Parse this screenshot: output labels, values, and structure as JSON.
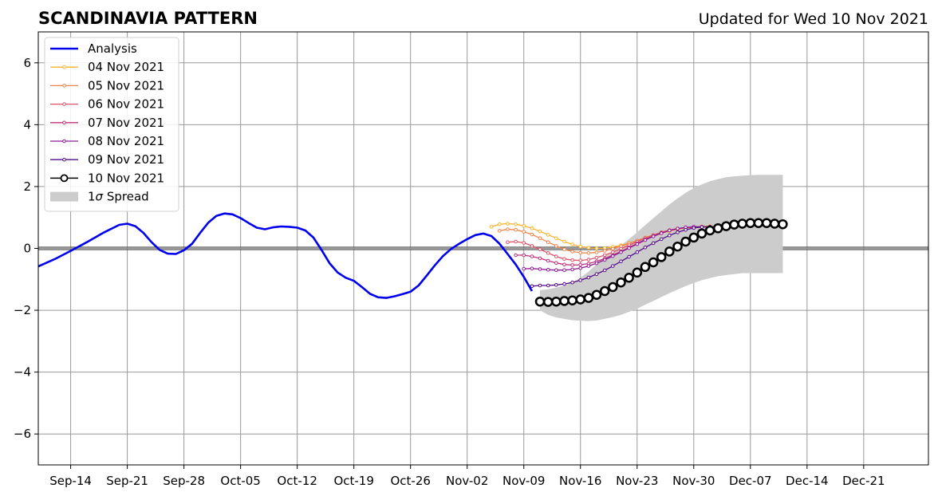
{
  "chart_data": {
    "type": "line",
    "title": "SCANDINAVIA PATTERN",
    "subtitle": "Updated for Wed 10 Nov 2021",
    "xlim": [
      "2021-09-10",
      "2021-12-29"
    ],
    "ylim": [
      -7,
      7
    ],
    "grid": true,
    "legend_position": "top-left",
    "x_ticks": [
      {
        "date": "2021-09-14",
        "label": "Sep-14"
      },
      {
        "date": "2021-09-21",
        "label": "Sep-21"
      },
      {
        "date": "2021-09-28",
        "label": "Sep-28"
      },
      {
        "date": "2021-10-05",
        "label": "Oct-05"
      },
      {
        "date": "2021-10-12",
        "label": "Oct-12"
      },
      {
        "date": "2021-10-19",
        "label": "Oct-19"
      },
      {
        "date": "2021-10-26",
        "label": "Oct-26"
      },
      {
        "date": "2021-11-02",
        "label": "Nov-02"
      },
      {
        "date": "2021-11-09",
        "label": "Nov-09"
      },
      {
        "date": "2021-11-16",
        "label": "Nov-16"
      },
      {
        "date": "2021-11-23",
        "label": "Nov-23"
      },
      {
        "date": "2021-11-30",
        "label": "Nov-30"
      },
      {
        "date": "2021-12-07",
        "label": "Dec-07"
      },
      {
        "date": "2021-12-14",
        "label": "Dec-14"
      },
      {
        "date": "2021-12-21",
        "label": "Dec-21"
      }
    ],
    "y_ticks": [
      {
        "value": -6,
        "label": "−6"
      },
      {
        "value": -4,
        "label": "−4"
      },
      {
        "value": -2,
        "label": "−2"
      },
      {
        "value": 0,
        "label": "0"
      },
      {
        "value": 2,
        "label": "2"
      },
      {
        "value": 4,
        "label": "4"
      },
      {
        "value": 6,
        "label": "6"
      }
    ],
    "analysis": {
      "name": "Analysis",
      "color": "#0000ee",
      "points": [
        [
          "2021-09-10",
          -0.58
        ],
        [
          "2021-09-12",
          -0.35
        ],
        [
          "2021-09-14",
          -0.08
        ],
        [
          "2021-09-16",
          0.2
        ],
        [
          "2021-09-18",
          0.5
        ],
        [
          "2021-09-20",
          0.76
        ],
        [
          "2021-09-21",
          0.8
        ],
        [
          "2021-09-22",
          0.72
        ],
        [
          "2021-09-23",
          0.5
        ],
        [
          "2021-09-24",
          0.2
        ],
        [
          "2021-09-25",
          -0.05
        ],
        [
          "2021-09-26",
          -0.17
        ],
        [
          "2021-09-27",
          -0.18
        ],
        [
          "2021-09-28",
          -0.06
        ],
        [
          "2021-09-29",
          0.15
        ],
        [
          "2021-09-30",
          0.5
        ],
        [
          "2021-10-01",
          0.83
        ],
        [
          "2021-10-02",
          1.05
        ],
        [
          "2021-10-03",
          1.13
        ],
        [
          "2021-10-04",
          1.1
        ],
        [
          "2021-10-05",
          0.98
        ],
        [
          "2021-10-06",
          0.82
        ],
        [
          "2021-10-07",
          0.67
        ],
        [
          "2021-10-08",
          0.62
        ],
        [
          "2021-10-09",
          0.68
        ],
        [
          "2021-10-10",
          0.71
        ],
        [
          "2021-10-11",
          0.7
        ],
        [
          "2021-10-12",
          0.67
        ],
        [
          "2021-10-13",
          0.58
        ],
        [
          "2021-10-14",
          0.35
        ],
        [
          "2021-10-15",
          -0.05
        ],
        [
          "2021-10-16",
          -0.48
        ],
        [
          "2021-10-17",
          -0.78
        ],
        [
          "2021-10-18",
          -0.95
        ],
        [
          "2021-10-19",
          -1.05
        ],
        [
          "2021-10-20",
          -1.25
        ],
        [
          "2021-10-21",
          -1.47
        ],
        [
          "2021-10-22",
          -1.58
        ],
        [
          "2021-10-23",
          -1.6
        ],
        [
          "2021-10-24",
          -1.55
        ],
        [
          "2021-10-25",
          -1.48
        ],
        [
          "2021-10-26",
          -1.4
        ],
        [
          "2021-10-27",
          -1.2
        ],
        [
          "2021-10-28",
          -0.88
        ],
        [
          "2021-10-29",
          -0.55
        ],
        [
          "2021-10-30",
          -0.25
        ],
        [
          "2021-10-31",
          -0.02
        ],
        [
          "2021-11-01",
          0.15
        ],
        [
          "2021-11-02",
          0.3
        ],
        [
          "2021-11-03",
          0.43
        ],
        [
          "2021-11-04",
          0.48
        ],
        [
          "2021-11-05",
          0.4
        ],
        [
          "2021-11-06",
          0.15
        ],
        [
          "2021-11-07",
          -0.18
        ],
        [
          "2021-11-08",
          -0.52
        ],
        [
          "2021-11-09",
          -0.92
        ],
        [
          "2021-11-10",
          -1.38
        ]
      ]
    },
    "spread": {
      "name": "1σ Spread",
      "legend_label_prefix": "1",
      "legend_label_symbol": "σ",
      "legend_label_suffix": " Spread",
      "color": "#cccccc",
      "x_start": "2021-11-11",
      "upper": [
        -1.35,
        -1.32,
        -1.27,
        -1.2,
        -1.1,
        -0.95,
        -0.75,
        -0.5,
        -0.28,
        -0.08,
        0.1,
        0.3,
        0.52,
        0.75,
        0.98,
        1.2,
        1.42,
        1.62,
        1.8,
        1.95,
        2.07,
        2.17,
        2.24,
        2.3,
        2.33,
        2.35,
        2.37,
        2.38,
        2.38,
        2.38,
        2.38
      ],
      "lower": [
        -2.0,
        -2.15,
        -2.23,
        -2.28,
        -2.32,
        -2.34,
        -2.35,
        -2.33,
        -2.28,
        -2.22,
        -2.15,
        -2.05,
        -1.95,
        -1.82,
        -1.7,
        -1.57,
        -1.45,
        -1.33,
        -1.22,
        -1.12,
        -1.03,
        -0.96,
        -0.9,
        -0.86,
        -0.83,
        -0.8,
        -0.8,
        -0.8,
        -0.8,
        -0.8,
        -0.8
      ]
    },
    "series": [
      {
        "name": "04 Nov 2021",
        "color": "#fcb32d",
        "style": "small-dots",
        "x_start": "2021-11-05",
        "values": [
          0.7,
          0.78,
          0.8,
          0.78,
          0.73,
          0.65,
          0.55,
          0.44,
          0.33,
          0.22,
          0.13,
          0.06,
          0.02,
          0.0,
          0.01,
          0.05,
          0.1,
          0.17,
          0.25,
          0.33,
          0.41,
          0.49,
          0.56,
          0.62,
          0.66,
          0.69,
          0.71,
          0.72
        ]
      },
      {
        "name": "05 Nov 2021",
        "color": "#f0844b",
        "style": "small-dots",
        "x_start": "2021-11-06",
        "values": [
          0.57,
          0.62,
          0.6,
          0.54,
          0.45,
          0.33,
          0.2,
          0.08,
          -0.03,
          -0.1,
          -0.14,
          -0.15,
          -0.13,
          -0.08,
          -0.01,
          0.07,
          0.16,
          0.25,
          0.35,
          0.43,
          0.51,
          0.58,
          0.63,
          0.67,
          0.69,
          0.7,
          0.7
        ]
      },
      {
        "name": "06 Nov 2021",
        "color": "#df5268",
        "style": "small-dots",
        "x_start": "2021-11-07",
        "values": [
          0.2,
          0.22,
          0.18,
          0.08,
          -0.03,
          -0.15,
          -0.26,
          -0.34,
          -0.38,
          -0.39,
          -0.36,
          -0.3,
          -0.22,
          -0.12,
          -0.01,
          0.1,
          0.22,
          0.33,
          0.43,
          0.52,
          0.59,
          0.64,
          0.67,
          0.69,
          0.7,
          0.7
        ]
      },
      {
        "name": "07 Nov 2021",
        "color": "#c0307a",
        "style": "small-dots",
        "x_start": "2021-11-08",
        "values": [
          -0.22,
          -0.22,
          -0.26,
          -0.32,
          -0.4,
          -0.47,
          -0.52,
          -0.54,
          -0.53,
          -0.49,
          -0.42,
          -0.33,
          -0.22,
          -0.1,
          0.03,
          0.16,
          0.29,
          0.4,
          0.5,
          0.58,
          0.63,
          0.67,
          0.69,
          0.7,
          0.7
        ]
      },
      {
        "name": "08 Nov 2021",
        "color": "#8e1a96",
        "style": "small-dots",
        "x_start": "2021-11-09",
        "values": [
          -0.66,
          -0.65,
          -0.67,
          -0.69,
          -0.7,
          -0.7,
          -0.68,
          -0.64,
          -0.57,
          -0.48,
          -0.37,
          -0.25,
          -0.12,
          0.01,
          0.14,
          0.27,
          0.39,
          0.49,
          0.58,
          0.64,
          0.68,
          0.7,
          0.7,
          0.69
        ]
      },
      {
        "name": "09 Nov 2021",
        "color": "#550b8c",
        "style": "small-dots",
        "x_start": "2021-11-10",
        "values": [
          -1.22,
          -1.2,
          -1.2,
          -1.18,
          -1.15,
          -1.1,
          -1.03,
          -0.94,
          -0.83,
          -0.71,
          -0.57,
          -0.42,
          -0.27,
          -0.12,
          0.03,
          0.17,
          0.3,
          0.42,
          0.52,
          0.6,
          0.66,
          0.69,
          0.7,
          0.7
        ]
      },
      {
        "name": "10 Nov 2021",
        "color": "#000000",
        "style": "large-circles",
        "x_start": "2021-11-11",
        "values": [
          -1.72,
          -1.73,
          -1.72,
          -1.7,
          -1.68,
          -1.65,
          -1.6,
          -1.5,
          -1.38,
          -1.25,
          -1.1,
          -0.95,
          -0.78,
          -0.6,
          -0.45,
          -0.28,
          -0.1,
          0.06,
          0.22,
          0.35,
          0.48,
          0.58,
          0.65,
          0.72,
          0.77,
          0.8,
          0.82,
          0.82,
          0.82,
          0.8,
          0.78
        ]
      }
    ]
  }
}
